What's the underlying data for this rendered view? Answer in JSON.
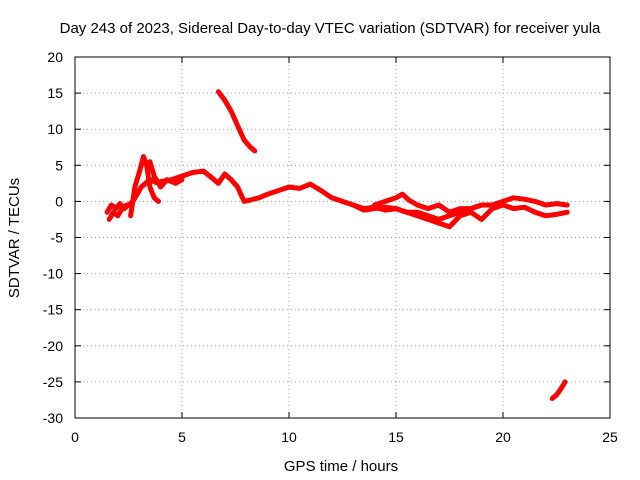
{
  "chart_data": {
    "type": "line",
    "title": "Day 243 of 2023, Sidereal Day-to-day VTEC variation (SDTVAR) for receiver yula",
    "xlabel": "GPS time / hours",
    "ylabel": "SDTVAR / TECUs",
    "xlim": [
      0,
      25
    ],
    "ylim": [
      -30,
      20
    ],
    "xticks": [
      0,
      5,
      10,
      15,
      20,
      25
    ],
    "yticks": [
      -30,
      -25,
      -20,
      -15,
      -10,
      -5,
      0,
      5,
      10,
      15,
      20
    ],
    "grid": true,
    "legend": "none",
    "line_color": "#ff0000",
    "series": [
      {
        "name": "main-trace",
        "x": [
          1.5,
          1.7,
          1.9,
          2.1,
          2.3,
          2.5,
          2.7,
          2.9,
          3.1,
          3.3,
          3.5,
          3.8,
          4.1,
          4.5,
          5.0,
          5.5,
          6.0,
          6.3,
          6.7,
          7.0,
          7.3,
          7.6,
          7.9,
          8.2,
          8.6,
          9.0,
          9.5,
          10.0,
          10.5,
          11.0,
          11.5,
          12.0,
          12.5,
          13.0,
          13.5,
          14.0,
          14.5,
          15.0,
          15.5,
          16.0,
          16.5,
          17.0,
          17.5,
          18.0,
          18.5,
          19.0,
          19.5,
          20.0,
          20.5,
          21.0,
          21.5,
          22.0,
          22.5,
          23.0
        ],
        "y": [
          -1.5,
          -0.5,
          -1.0,
          -0.3,
          -1.0,
          -0.5,
          0.0,
          1.0,
          2.0,
          2.5,
          3.0,
          2.6,
          2.8,
          3.0,
          3.5,
          4.0,
          4.2,
          3.5,
          2.5,
          3.8,
          3.0,
          2.0,
          0.0,
          0.2,
          0.5,
          1.0,
          1.5,
          2.0,
          1.8,
          2.4,
          1.5,
          0.5,
          0.0,
          -0.5,
          -1.0,
          -0.8,
          -1.2,
          -1.0,
          -1.5,
          -1.5,
          -2.0,
          -2.5,
          -2.0,
          -1.5,
          -1.0,
          -0.5,
          -0.5,
          0.0,
          0.5,
          0.3,
          0.0,
          -0.5,
          -0.3,
          -0.5
        ]
      },
      {
        "name": "lower-trace",
        "x": [
          13.0,
          13.5,
          14.0,
          14.5,
          15.0,
          15.5,
          16.0,
          16.5,
          17.0,
          17.5,
          18.0,
          18.5,
          19.0,
          19.5,
          20.0,
          20.5,
          21.0,
          21.5,
          22.0,
          22.5,
          23.0
        ],
        "y": [
          -0.5,
          -1.2,
          -1.0,
          -0.8,
          -1.0,
          -1.5,
          -2.0,
          -2.5,
          -3.0,
          -3.5,
          -2.0,
          -1.5,
          -2.5,
          -1.0,
          -0.5,
          -1.0,
          -0.8,
          -1.5,
          -2.0,
          -1.8,
          -1.5
        ]
      },
      {
        "name": "upper-trace",
        "x": [
          14.0,
          14.5,
          15.0,
          15.3,
          15.6,
          16.0,
          16.5,
          17.0,
          17.5,
          18.0,
          18.5,
          19.0
        ],
        "y": [
          -0.5,
          0.0,
          0.5,
          1.0,
          0.2,
          -0.5,
          -1.0,
          -0.5,
          -1.5,
          -1.0,
          -1.0,
          -0.5
        ]
      },
      {
        "name": "early-spike",
        "x": [
          2.6,
          2.8,
          3.0,
          3.2,
          3.35,
          3.5,
          3.7,
          3.9
        ],
        "y": [
          -2.0,
          2.0,
          4.0,
          6.2,
          5.0,
          2.0,
          0.5,
          0.0
        ]
      },
      {
        "name": "early-branch",
        "x": [
          3.5,
          3.7,
          4.0,
          4.3,
          4.7,
          5.0
        ],
        "y": [
          5.5,
          3.5,
          2.0,
          3.0,
          2.5,
          3.0
        ]
      },
      {
        "name": "early-segment",
        "x": [
          1.6,
          1.8,
          2.0,
          2.2,
          2.4
        ],
        "y": [
          -2.5,
          -1.5,
          -2.0,
          -1.0,
          -0.5
        ]
      },
      {
        "name": "detached-high",
        "x": [
          6.7,
          7.0,
          7.3,
          7.6,
          7.9,
          8.2,
          8.4
        ],
        "y": [
          15.2,
          14.0,
          12.5,
          10.5,
          8.5,
          7.5,
          7.0
        ]
      },
      {
        "name": "detached-low",
        "x": [
          22.3,
          22.5,
          22.7,
          22.9
        ],
        "y": [
          -27.3,
          -26.8,
          -26.0,
          -25.0
        ]
      }
    ]
  }
}
